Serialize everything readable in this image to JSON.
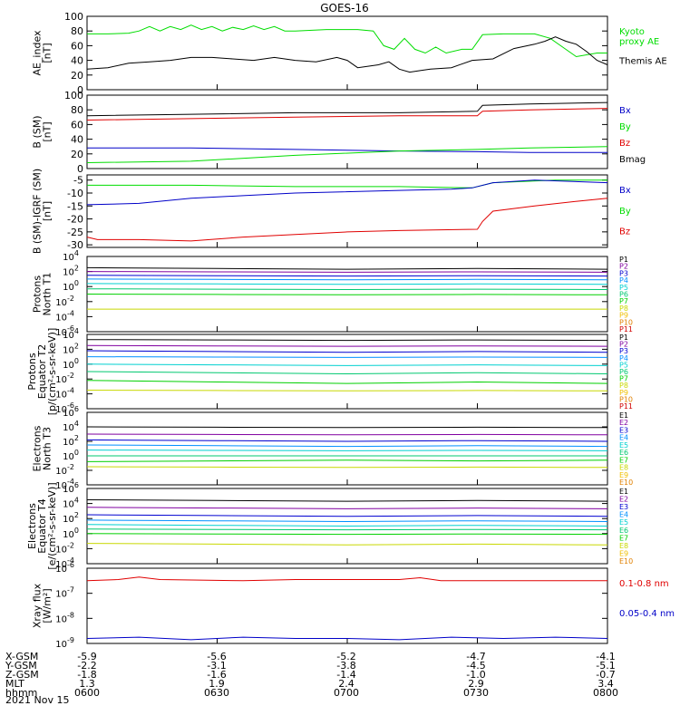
{
  "title": "GOES-16",
  "date": "2021 Nov 15",
  "colors": {
    "black": "#000000",
    "red": "#e00000",
    "green": "#00dd00",
    "blue": "#0000c8",
    "ch": [
      "#000000",
      "#8000a0",
      "#0000d0",
      "#0090ff",
      "#00d0d0",
      "#00c870",
      "#00d000",
      "#c8d800",
      "#f0c000",
      "#e08000",
      "#d00000"
    ]
  },
  "chart_data": [
    {
      "type": "line",
      "id": "ae",
      "ylabel": "AE_index\n[nT]",
      "ylim": [
        0,
        100
      ],
      "ticks": [
        "0",
        "20",
        "40",
        "60",
        "80",
        "100"
      ],
      "tickvals": [
        0,
        20,
        40,
        60,
        80,
        100
      ],
      "labels": [
        {
          "text": "Kyoto\nproxy AE",
          "color": "#00dd00"
        },
        {
          "text": "Themis AE",
          "color": "#000000"
        }
      ],
      "series": [
        {
          "name": "Kyoto proxy AE",
          "color": "#00dd00",
          "points": [
            [
              0,
              76
            ],
            [
              4,
              76
            ],
            [
              8,
              77
            ],
            [
              10,
              80
            ],
            [
              12,
              86
            ],
            [
              14,
              80
            ],
            [
              16,
              86
            ],
            [
              18,
              82
            ],
            [
              20,
              88
            ],
            [
              22,
              82
            ],
            [
              24,
              86
            ],
            [
              26,
              80
            ],
            [
              28,
              85
            ],
            [
              30,
              82
            ],
            [
              32,
              87
            ],
            [
              34,
              82
            ],
            [
              36,
              86
            ],
            [
              38,
              80
            ],
            [
              40,
              80
            ],
            [
              46,
              82
            ],
            [
              52,
              82
            ],
            [
              55,
              80
            ],
            [
              57,
              60
            ],
            [
              59,
              55
            ],
            [
              61,
              70
            ],
            [
              63,
              55
            ],
            [
              65,
              50
            ],
            [
              67,
              58
            ],
            [
              69,
              50
            ],
            [
              72,
              55
            ],
            [
              74,
              55
            ],
            [
              76,
              75
            ],
            [
              80,
              76
            ],
            [
              86,
              76
            ],
            [
              89,
              70
            ],
            [
              91,
              60
            ],
            [
              94,
              45
            ],
            [
              98,
              50
            ],
            [
              100,
              50
            ]
          ]
        },
        {
          "name": "Themis AE",
          "color": "#000000",
          "points": [
            [
              0,
              28
            ],
            [
              4,
              30
            ],
            [
              8,
              36
            ],
            [
              12,
              38
            ],
            [
              16,
              40
            ],
            [
              20,
              44
            ],
            [
              24,
              44
            ],
            [
              28,
              42
            ],
            [
              32,
              40
            ],
            [
              36,
              44
            ],
            [
              40,
              40
            ],
            [
              44,
              38
            ],
            [
              48,
              44
            ],
            [
              50,
              40
            ],
            [
              52,
              30
            ],
            [
              54,
              32
            ],
            [
              56,
              34
            ],
            [
              58,
              38
            ],
            [
              60,
              28
            ],
            [
              62,
              24
            ],
            [
              64,
              26
            ],
            [
              66,
              28
            ],
            [
              70,
              30
            ],
            [
              74,
              40
            ],
            [
              78,
              42
            ],
            [
              82,
              56
            ],
            [
              86,
              62
            ],
            [
              88,
              66
            ],
            [
              90,
              72
            ],
            [
              92,
              66
            ],
            [
              94,
              62
            ],
            [
              96,
              52
            ],
            [
              98,
              40
            ],
            [
              100,
              34
            ]
          ]
        }
      ]
    },
    {
      "type": "line",
      "id": "bsm",
      "ylabel": "B (SM)\n[nT]",
      "ylim": [
        0,
        100
      ],
      "ticks": [
        "0",
        "20",
        "40",
        "60",
        "80",
        "100"
      ],
      "tickvals": [
        0,
        20,
        40,
        60,
        80,
        100
      ],
      "labels": [
        {
          "text": "Bx",
          "color": "#0000c8"
        },
        {
          "text": "By",
          "color": "#00dd00"
        },
        {
          "text": "Bz",
          "color": "#e00000"
        },
        {
          "text": "Bmag",
          "color": "#000000"
        }
      ],
      "series": [
        {
          "name": "Bmag",
          "color": "#000000",
          "points": [
            [
              0,
              72
            ],
            [
              20,
              74
            ],
            [
              40,
              76
            ],
            [
              60,
              76
            ],
            [
              75,
              78
            ],
            [
              76,
              86
            ],
            [
              85,
              88
            ],
            [
              100,
              90
            ]
          ]
        },
        {
          "name": "Bz",
          "color": "#e00000",
          "points": [
            [
              0,
              66
            ],
            [
              20,
              68
            ],
            [
              40,
              70
            ],
            [
              60,
              72
            ],
            [
              75,
              72
            ],
            [
              76,
              78
            ],
            [
              85,
              80
            ],
            [
              100,
              82
            ]
          ]
        },
        {
          "name": "Bx",
          "color": "#0000c8",
          "points": [
            [
              0,
              28
            ],
            [
              20,
              28
            ],
            [
              40,
              26
            ],
            [
              60,
              24
            ],
            [
              75,
              23
            ],
            [
              85,
              22
            ],
            [
              100,
              22
            ]
          ]
        },
        {
          "name": "By",
          "color": "#00dd00",
          "points": [
            [
              0,
              8
            ],
            [
              20,
              10
            ],
            [
              40,
              18
            ],
            [
              60,
              24
            ],
            [
              75,
              26
            ],
            [
              85,
              28
            ],
            [
              100,
              30
            ]
          ]
        }
      ]
    },
    {
      "type": "line",
      "id": "bigrf",
      "ylabel": "B (SM)-IGRF (SM)\n[nT]",
      "ylim": [
        -31,
        -3
      ],
      "ticks": [
        "-30",
        "-25",
        "-20",
        "-15",
        "-10",
        "-5"
      ],
      "tickvals": [
        -30,
        -25,
        -20,
        -15,
        -10,
        -5
      ],
      "labels": [
        {
          "text": "Bx",
          "color": "#0000c8"
        },
        {
          "text": "By",
          "color": "#00dd00"
        },
        {
          "text": "Bz",
          "color": "#e00000"
        }
      ],
      "series": [
        {
          "name": "By",
          "color": "#00dd00",
          "points": [
            [
              0,
              -7
            ],
            [
              20,
              -7
            ],
            [
              40,
              -7.5
            ],
            [
              60,
              -7.5
            ],
            [
              74,
              -8
            ],
            [
              78,
              -6
            ],
            [
              90,
              -5
            ],
            [
              100,
              -5
            ]
          ]
        },
        {
          "name": "Bx",
          "color": "#0000c8",
          "points": [
            [
              0,
              -14.5
            ],
            [
              10,
              -14
            ],
            [
              20,
              -12
            ],
            [
              30,
              -11
            ],
            [
              40,
              -10
            ],
            [
              60,
              -9
            ],
            [
              70,
              -8.5
            ],
            [
              74,
              -8
            ],
            [
              78,
              -6
            ],
            [
              86,
              -5
            ],
            [
              100,
              -6
            ]
          ]
        },
        {
          "name": "Bz",
          "color": "#e00000",
          "points": [
            [
              0,
              -27
            ],
            [
              2,
              -28
            ],
            [
              10,
              -28
            ],
            [
              20,
              -28.5
            ],
            [
              30,
              -27
            ],
            [
              40,
              -26
            ],
            [
              50,
              -25
            ],
            [
              60,
              -24.5
            ],
            [
              75,
              -24
            ],
            [
              76,
              -21
            ],
            [
              78,
              -17
            ],
            [
              86,
              -15
            ],
            [
              95,
              -13
            ],
            [
              100,
              -12
            ]
          ]
        }
      ]
    },
    {
      "type": "line",
      "id": "pn",
      "ylabel": "Protons\nNorth T1",
      "log": true,
      "ylim": [
        -6,
        4
      ],
      "ticks": [
        "10^-6",
        "10^-4",
        "10^-2",
        "10^0",
        "10^2",
        "10^4"
      ],
      "tickvals": [
        -6,
        -4,
        -2,
        0,
        2,
        4
      ],
      "labels": [
        "P1",
        "P2",
        "P3",
        "P4",
        "P5",
        "P6",
        "P7",
        "P8",
        "P9",
        "P10",
        "P11"
      ],
      "levels": [
        [
          2.5,
          2.3
        ],
        [
          2,
          1.9
        ],
        [
          1.5,
          1.4
        ],
        [
          1,
          0.9
        ],
        [
          0.4,
          0.3
        ],
        [
          -0.3,
          -0.4
        ],
        [
          -1,
          -1.1
        ],
        [
          -3,
          -3
        ]
      ]
    },
    {
      "type": "line",
      "id": "pe",
      "ylabel": "Protons\nEquator T2\n[p/(cm²-s-sr-keV)]",
      "log": true,
      "ylim": [
        -6,
        4
      ],
      "ticks": [
        "10^-6",
        "10^-4",
        "10^-2",
        "10^0",
        "10^2",
        "10^4"
      ],
      "tickvals": [
        -6,
        -4,
        -2,
        0,
        2,
        4
      ],
      "labels": [
        "P1",
        "P2",
        "P3",
        "P4",
        "P5",
        "P6",
        "P7",
        "P8",
        "P9",
        "P10",
        "P11"
      ],
      "levels": [
        [
          3.3,
          3.2
        ],
        [
          2.5,
          2.4
        ],
        [
          1.8,
          1.6
        ],
        [
          1,
          0.9
        ],
        [
          0,
          -0.2
        ],
        [
          -1,
          -1.3
        ],
        [
          -2.2,
          -2.6
        ],
        [
          -3.5,
          -3.6
        ]
      ]
    },
    {
      "type": "line",
      "id": "en",
      "ylabel": "Electrons\nNorth T3",
      "log": true,
      "ylim": [
        -4,
        6
      ],
      "ticks": [
        "10^-4",
        "10^-2",
        "10^0",
        "10^2",
        "10^4",
        "10^6"
      ],
      "tickvals": [
        -4,
        -2,
        0,
        2,
        4,
        6
      ],
      "labels": [
        "E1",
        "E2",
        "E3",
        "E4",
        "E5",
        "E6",
        "E7",
        "E8",
        "E9",
        "E10"
      ],
      "levels": [
        [
          4,
          3.9
        ],
        [
          3,
          2.9
        ],
        [
          2.2,
          2
        ],
        [
          1.5,
          1.3
        ],
        [
          0.8,
          0.7
        ],
        [
          0,
          0
        ],
        [
          -0.8,
          -0.6
        ],
        [
          -1.5,
          -1.6
        ]
      ]
    },
    {
      "type": "line",
      "id": "ee",
      "ylabel": "Electrons\nEquator T4\n[e/(cm²-s-sr-keV)]",
      "log": true,
      "ylim": [
        -4,
        6
      ],
      "ticks": [
        "10^-4",
        "10^-2",
        "10^0",
        "10^2",
        "10^4",
        "10^6"
      ],
      "tickvals": [
        -4,
        -2,
        0,
        2,
        4,
        6
      ],
      "labels": [
        "E1",
        "E2",
        "E3",
        "E4",
        "E5",
        "E6",
        "E7",
        "E8",
        "E9",
        "E10"
      ],
      "levels": [
        [
          4.5,
          4.3
        ],
        [
          3.5,
          3.3
        ],
        [
          2.5,
          2.3
        ],
        [
          1.8,
          1.6
        ],
        [
          1.2,
          1
        ],
        [
          0.6,
          0.5
        ],
        [
          0,
          -0.1
        ],
        [
          -1.3,
          -1.5
        ]
      ]
    },
    {
      "type": "line",
      "id": "xray",
      "ylabel": "Xray flux\n[W/m²]",
      "log": true,
      "ylim": [
        -9,
        -6
      ],
      "ticks": [
        "10^-9",
        "10^-8",
        "10^-7",
        "10^-6"
      ],
      "tickvals": [
        -9,
        -8,
        -7,
        -6
      ],
      "labels": [
        {
          "text": "0.1-0.8 nm",
          "color": "#e00000"
        },
        {
          "text": "0.05-0.4 nm",
          "color": "#0000c8"
        }
      ],
      "series": [
        {
          "name": "0.1-0.8 nm",
          "color": "#e00000",
          "points": [
            [
              0,
              -6.5
            ],
            [
              6,
              -6.45
            ],
            [
              10,
              -6.35
            ],
            [
              14,
              -6.45
            ],
            [
              30,
              -6.5
            ],
            [
              40,
              -6.45
            ],
            [
              60,
              -6.45
            ],
            [
              64,
              -6.38
            ],
            [
              68,
              -6.5
            ],
            [
              100,
              -6.5
            ]
          ]
        },
        {
          "name": "0.05-0.4 nm",
          "color": "#0000c8",
          "points": [
            [
              0,
              -8.8
            ],
            [
              10,
              -8.75
            ],
            [
              20,
              -8.85
            ],
            [
              30,
              -8.75
            ],
            [
              40,
              -8.8
            ],
            [
              50,
              -8.8
            ],
            [
              60,
              -8.85
            ],
            [
              70,
              -8.75
            ],
            [
              80,
              -8.8
            ],
            [
              90,
              -8.75
            ],
            [
              100,
              -8.8
            ]
          ]
        }
      ]
    }
  ],
  "xaxis": {
    "rows": [
      {
        "label": "X-GSM",
        "values": [
          "-5.9",
          "-5.6",
          "-5.2",
          "-4.7",
          "-4.1"
        ]
      },
      {
        "label": "Y-GSM",
        "values": [
          "-2.2",
          "-3.1",
          "-3.8",
          "-4.5",
          "-5.1"
        ]
      },
      {
        "label": "Z-GSM",
        "values": [
          "-1.8",
          "-1.6",
          "-1.4",
          "-1.0",
          "-0.7"
        ]
      },
      {
        "label": "MLT",
        "values": [
          "1.3",
          "1.9",
          "2.4",
          "2.9",
          "3.4"
        ]
      },
      {
        "label": "hhmm",
        "values": [
          "0600",
          "0630",
          "0700",
          "0730",
          "0800"
        ]
      }
    ]
  }
}
